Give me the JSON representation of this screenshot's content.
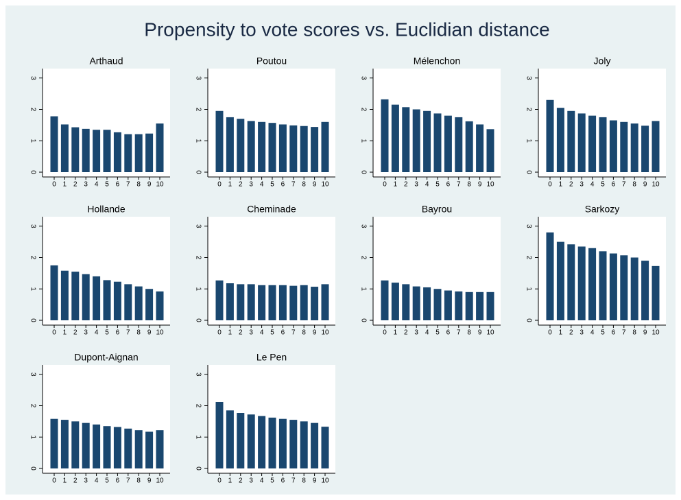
{
  "title": "Propensity to vote scores vs. Euclidian distance",
  "chart_data": [
    {
      "type": "bar",
      "title": "Arthaud",
      "color": "#1a476f",
      "categories": [
        "0",
        "1",
        "2",
        "3",
        "4",
        "5",
        "6",
        "7",
        "8",
        "9",
        "10"
      ],
      "values": [
        1.78,
        1.52,
        1.43,
        1.38,
        1.35,
        1.35,
        1.27,
        1.21,
        1.21,
        1.23,
        1.55
      ],
      "ylim": [
        0,
        3.3
      ],
      "yticks": [
        0,
        1,
        2,
        3
      ]
    },
    {
      "type": "bar",
      "title": "Poutou",
      "color": "#1a476f",
      "categories": [
        "0",
        "1",
        "2",
        "3",
        "4",
        "5",
        "6",
        "7",
        "8",
        "9",
        "10"
      ],
      "values": [
        1.95,
        1.75,
        1.7,
        1.63,
        1.6,
        1.57,
        1.52,
        1.49,
        1.47,
        1.44,
        1.6
      ],
      "ylim": [
        0,
        3.3
      ],
      "yticks": [
        0,
        1,
        2,
        3
      ]
    },
    {
      "type": "bar",
      "title": "Mélenchon",
      "color": "#1a476f",
      "categories": [
        "0",
        "1",
        "2",
        "3",
        "4",
        "5",
        "6",
        "7",
        "8",
        "9",
        "10"
      ],
      "values": [
        2.32,
        2.15,
        2.07,
        2.0,
        1.95,
        1.87,
        1.8,
        1.75,
        1.62,
        1.52,
        1.37
      ],
      "ylim": [
        0,
        3.3
      ],
      "yticks": [
        0,
        1,
        2,
        3
      ]
    },
    {
      "type": "bar",
      "title": "Joly",
      "color": "#1a476f",
      "categories": [
        "0",
        "1",
        "2",
        "3",
        "4",
        "5",
        "6",
        "7",
        "8",
        "9",
        "10"
      ],
      "values": [
        2.3,
        2.05,
        1.95,
        1.87,
        1.8,
        1.75,
        1.65,
        1.6,
        1.55,
        1.48,
        1.63
      ],
      "ylim": [
        0,
        3.3
      ],
      "yticks": [
        0,
        1,
        2,
        3
      ]
    },
    {
      "type": "bar",
      "title": "Hollande",
      "color": "#1a476f",
      "categories": [
        "0",
        "1",
        "2",
        "3",
        "4",
        "5",
        "6",
        "7",
        "8",
        "9",
        "10"
      ],
      "values": [
        1.75,
        1.58,
        1.55,
        1.47,
        1.4,
        1.28,
        1.23,
        1.15,
        1.08,
        1.0,
        0.92
      ],
      "ylim": [
        0,
        3.3
      ],
      "yticks": [
        0,
        1,
        2,
        3
      ]
    },
    {
      "type": "bar",
      "title": "Cheminade",
      "color": "#1a476f",
      "categories": [
        "0",
        "1",
        "2",
        "3",
        "4",
        "5",
        "6",
        "7",
        "8",
        "9",
        "10"
      ],
      "values": [
        1.27,
        1.18,
        1.15,
        1.15,
        1.12,
        1.12,
        1.12,
        1.1,
        1.12,
        1.07,
        1.15
      ],
      "ylim": [
        0,
        3.3
      ],
      "yticks": [
        0,
        1,
        2,
        3
      ]
    },
    {
      "type": "bar",
      "title": "Bayrou",
      "color": "#1a476f",
      "categories": [
        "0",
        "1",
        "2",
        "3",
        "4",
        "5",
        "6",
        "7",
        "8",
        "9",
        "10"
      ],
      "values": [
        1.27,
        1.2,
        1.15,
        1.08,
        1.05,
        1.0,
        0.95,
        0.92,
        0.9,
        0.9,
        0.9
      ],
      "ylim": [
        0,
        3.3
      ],
      "yticks": [
        0,
        1,
        2,
        3
      ]
    },
    {
      "type": "bar",
      "title": "Sarkozy",
      "color": "#1a476f",
      "categories": [
        "0",
        "1",
        "2",
        "3",
        "4",
        "5",
        "6",
        "7",
        "8",
        "9",
        "10"
      ],
      "values": [
        2.8,
        2.5,
        2.42,
        2.35,
        2.3,
        2.2,
        2.13,
        2.07,
        2.0,
        1.9,
        1.73
      ],
      "ylim": [
        0,
        3.3
      ],
      "yticks": [
        0,
        1,
        2,
        3
      ]
    },
    {
      "type": "bar",
      "title": "Dupont-Aignan",
      "color": "#1a476f",
      "categories": [
        "0",
        "1",
        "2",
        "3",
        "4",
        "5",
        "6",
        "7",
        "8",
        "9",
        "10"
      ],
      "values": [
        1.58,
        1.55,
        1.5,
        1.45,
        1.4,
        1.35,
        1.32,
        1.27,
        1.22,
        1.17,
        1.22
      ],
      "ylim": [
        0,
        3.3
      ],
      "yticks": [
        0,
        1,
        2,
        3
      ]
    },
    {
      "type": "bar",
      "title": "Le Pen",
      "color": "#1a476f",
      "categories": [
        "0",
        "1",
        "2",
        "3",
        "4",
        "5",
        "6",
        "7",
        "8",
        "9",
        "10"
      ],
      "values": [
        2.12,
        1.85,
        1.77,
        1.72,
        1.67,
        1.62,
        1.58,
        1.55,
        1.5,
        1.45,
        1.33
      ],
      "ylim": [
        0,
        3.3
      ],
      "yticks": [
        0,
        1,
        2,
        3
      ]
    }
  ]
}
